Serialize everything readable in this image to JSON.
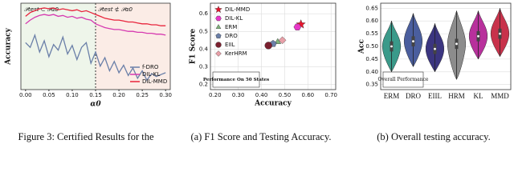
{
  "chart_data": [
    {
      "type": "line",
      "x_label": "α0",
      "y_label": "Accuracy",
      "annotations": [
        "𝒫test ⊂ 𝒫α0",
        "𝒫test ⊄ 𝒫α0"
      ],
      "vline": 0.15,
      "x": [
        0.0,
        0.01,
        0.02,
        0.03,
        0.04,
        0.05,
        0.06,
        0.07,
        0.08,
        0.09,
        0.1,
        0.11,
        0.12,
        0.13,
        0.14,
        0.15,
        0.16,
        0.17,
        0.18,
        0.19,
        0.2,
        0.21,
        0.22,
        0.23,
        0.24,
        0.25,
        0.26,
        0.27,
        0.28,
        0.29,
        0.3
      ],
      "series": [
        {
          "name": "f-DRO",
          "color": "#6a7fa8",
          "values": [
            0.6,
            0.55,
            0.68,
            0.5,
            0.62,
            0.45,
            0.58,
            0.52,
            0.66,
            0.48,
            0.57,
            0.42,
            0.55,
            0.6,
            0.38,
            0.5,
            0.35,
            0.44,
            0.3,
            0.4,
            0.28,
            0.36,
            0.25,
            0.33,
            0.22,
            0.3,
            0.2,
            0.27,
            0.24,
            0.26,
            0.28
          ]
        },
        {
          "name": "DIL-KL",
          "color": "#d63ab0",
          "values": [
            0.8,
            0.84,
            0.87,
            0.89,
            0.9,
            0.89,
            0.9,
            0.88,
            0.89,
            0.87,
            0.88,
            0.86,
            0.87,
            0.85,
            0.84,
            0.8,
            0.78,
            0.76,
            0.75,
            0.74,
            0.74,
            0.73,
            0.72,
            0.72,
            0.71,
            0.71,
            0.7,
            0.7,
            0.69,
            0.69,
            0.68
          ]
        },
        {
          "name": "DIL-MMD",
          "color": "#e8243c",
          "values": [
            0.88,
            0.92,
            0.94,
            0.96,
            0.97,
            0.96,
            0.97,
            0.95,
            0.96,
            0.95,
            0.94,
            0.95,
            0.93,
            0.94,
            0.92,
            0.9,
            0.88,
            0.86,
            0.85,
            0.84,
            0.84,
            0.83,
            0.82,
            0.82,
            0.81,
            0.8,
            0.8,
            0.79,
            0.79,
            0.78,
            0.78
          ]
        }
      ],
      "xlim": [
        -0.01,
        0.31
      ],
      "ylim": [
        0.1,
        1.02
      ],
      "xticks": [
        {
          "value": 0,
          "label": "0.00"
        },
        0.05,
        {
          "value": 0.1,
          "label": "0.10"
        },
        0.15,
        {
          "value": 0.2,
          "label": "0.20"
        },
        0.25,
        {
          "value": 0.3,
          "label": "0.30"
        }
      ],
      "caption": "Figure 3: Certified Results for the"
    },
    {
      "type": "scatter",
      "x_label": "Accuracy",
      "y_label": "F1 Score",
      "annotation": "Performance On 50 States",
      "series": [
        {
          "name": "DIL-MMD",
          "color": "#e8142c",
          "marker": "star",
          "x": [
            0.57
          ],
          "values": [
            0.54
          ]
        },
        {
          "name": "DIL-KL",
          "color": "#e838c8",
          "marker": "hexagon",
          "x": [
            0.555
          ],
          "values": [
            0.525
          ]
        },
        {
          "name": "ERM",
          "color": "#7fb27a",
          "marker": "triangle",
          "x": [
            0.47
          ],
          "values": [
            0.44
          ]
        },
        {
          "name": "DRO",
          "color": "#6a7fa8",
          "marker": "pentagon",
          "x": [
            0.45
          ],
          "values": [
            0.43
          ]
        },
        {
          "name": "EIIL",
          "color": "#7a1f2e",
          "marker": "circle",
          "x": [
            0.43
          ],
          "values": [
            0.42
          ]
        },
        {
          "name": "KerHRM",
          "color": "#e8a0a8",
          "marker": "diamond",
          "x": [
            0.49
          ],
          "values": [
            0.45
          ]
        }
      ],
      "xlim": [
        0.18,
        0.72
      ],
      "ylim": [
        0.17,
        0.66
      ],
      "xticks": [
        {
          "value": 0.2,
          "label": "0.20"
        },
        {
          "value": 0.3,
          "label": "0.30"
        },
        {
          "value": 0.4,
          "label": "0.40"
        },
        {
          "value": 0.5,
          "label": "0.50"
        },
        {
          "value": 0.6,
          "label": "0.60"
        },
        {
          "value": 0.7,
          "label": "0.70"
        }
      ],
      "yticks": [
        0.2,
        0.3,
        0.4,
        0.5,
        0.6
      ],
      "caption": "(a) F1 Score and Testing Accuracy."
    },
    {
      "type": "violin",
      "y_label": "Acc",
      "annotation": "Overall Performance",
      "categories": [
        "ERM",
        "DRO",
        "EIIL",
        "HRM",
        "KL",
        "MMD"
      ],
      "colors": [
        "#3a9a8a",
        "#4a5e9e",
        "#3b3580",
        "#8c8c8c",
        "#b8309c",
        "#c8324b"
      ],
      "values": [
        0.5,
        0.52,
        0.49,
        0.51,
        0.54,
        0.55
      ],
      "q1": [
        0.48,
        0.5,
        0.47,
        0.49,
        0.52,
        0.53
      ],
      "q3": [
        0.52,
        0.54,
        0.51,
        0.53,
        0.56,
        0.57
      ],
      "min": [
        0.4,
        0.42,
        0.4,
        0.37,
        0.45,
        0.46
      ],
      "max": [
        0.6,
        0.63,
        0.59,
        0.64,
        0.64,
        0.65
      ],
      "ylim": [
        0.33,
        0.67
      ],
      "yticks": [
        0.35,
        {
          "value": 0.4,
          "label": "0.40"
        },
        0.45,
        {
          "value": 0.5,
          "label": "0.50"
        },
        0.55,
        {
          "value": 0.6,
          "label": "0.60"
        },
        0.65
      ],
      "caption": "(b) Overall testing accuracy."
    }
  ]
}
